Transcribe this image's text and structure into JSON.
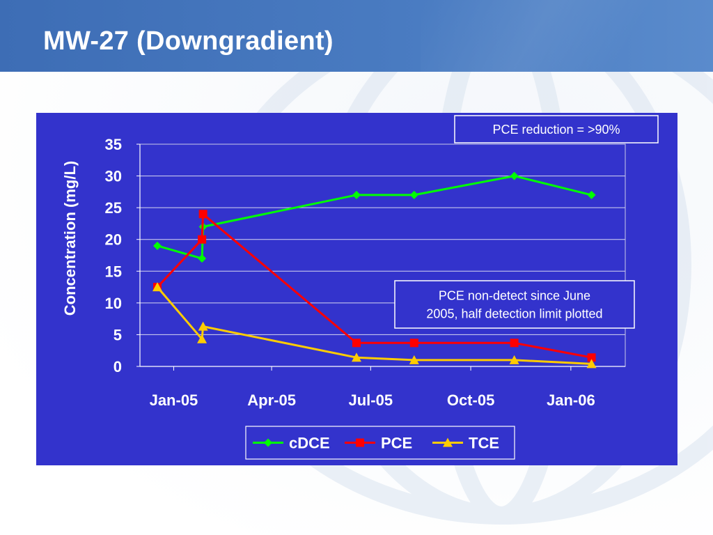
{
  "slide": {
    "title": "MW-27 (Downgradient)"
  },
  "colors": {
    "panel": "#3333cc",
    "cdce": "#00ff00",
    "pce": "#ff0000",
    "tce": "#ffcc00",
    "title_band": "#4a7cc2"
  },
  "chart_data": {
    "type": "line",
    "ylabel": "Concentration (mg/L)",
    "ylim": [
      0,
      35
    ],
    "yticks": [
      0,
      5,
      10,
      15,
      20,
      25,
      30,
      35
    ],
    "xlim": [
      "2004-12-01",
      "2006-02-20"
    ],
    "xticks": [
      {
        "date": "2005-01-01",
        "label": "Jan-05"
      },
      {
        "date": "2005-04-01",
        "label": "Apr-05"
      },
      {
        "date": "2005-07-01",
        "label": "Jul-05"
      },
      {
        "date": "2005-10-01",
        "label": "Oct-05"
      },
      {
        "date": "2006-01-01",
        "label": "Jan-06"
      }
    ],
    "grid": "horizontal",
    "legend": "bottom",
    "series": [
      {
        "name": "cDCE",
        "marker": "diamond",
        "points": [
          {
            "x": "2004-12-17",
            "y": 19
          },
          {
            "x": "2005-01-27",
            "y": 17
          },
          {
            "x": "2005-01-28",
            "y": 22
          },
          {
            "x": "2005-06-18",
            "y": 27
          },
          {
            "x": "2005-08-10",
            "y": 27
          },
          {
            "x": "2005-11-10",
            "y": 30
          },
          {
            "x": "2006-01-20",
            "y": 27
          }
        ]
      },
      {
        "name": "PCE",
        "marker": "square",
        "points": [
          {
            "x": "2004-12-17",
            "y": 12.5
          },
          {
            "x": "2005-01-27",
            "y": 20
          },
          {
            "x": "2005-01-28",
            "y": 24
          },
          {
            "x": "2005-06-18",
            "y": 3.7
          },
          {
            "x": "2005-08-10",
            "y": 3.7
          },
          {
            "x": "2005-11-10",
            "y": 3.7
          },
          {
            "x": "2006-01-20",
            "y": 1.4
          }
        ]
      },
      {
        "name": "TCE",
        "marker": "triangle",
        "points": [
          {
            "x": "2004-12-17",
            "y": 12.5
          },
          {
            "x": "2005-01-27",
            "y": 4.3
          },
          {
            "x": "2005-01-28",
            "y": 6.3
          },
          {
            "x": "2005-06-18",
            "y": 1.4
          },
          {
            "x": "2005-08-10",
            "y": 1
          },
          {
            "x": "2005-11-10",
            "y": 1
          },
          {
            "x": "2006-01-20",
            "y": 0.4
          }
        ]
      }
    ],
    "annotations": [
      {
        "id": "reduction",
        "text_lines": [
          "PCE reduction = >90%"
        ]
      },
      {
        "id": "nondetect",
        "text_lines": [
          "PCE non-detect since June",
          "2005, half detection limit plotted"
        ]
      }
    ]
  }
}
